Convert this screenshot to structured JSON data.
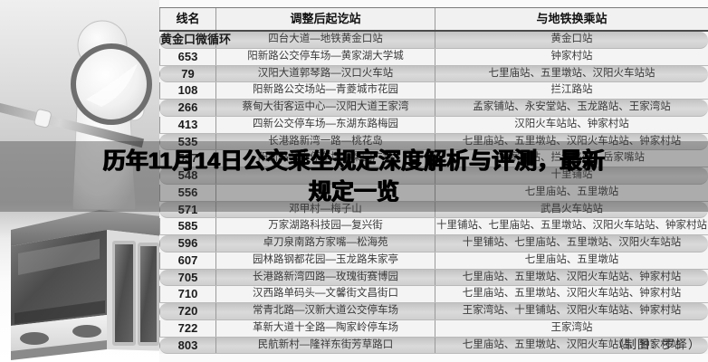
{
  "title": {
    "line1": "历年11月14日公交乘坐规定深度解析与评测，最新",
    "line2": "规定一览"
  },
  "credit": "（制图：罗怿）",
  "table": {
    "headers": [
      "线名",
      "调整后起讫站",
      "与地铁换乘站"
    ],
    "rows": [
      [
        "黄金口微循环",
        "四台大道—地铁黄金口站",
        "黄金口站"
      ],
      [
        "653",
        "阳新路公交停车场—黄家湖大学城",
        "钟家村站"
      ],
      [
        "79",
        "汉阳大道郭琴路—汉口火车站",
        "七里庙站、五里墩站、汉阳火车站站"
      ],
      [
        "108",
        "阳新路公交场站—青菱城市花园",
        "拦江路站"
      ],
      [
        "266",
        "蔡甸大街客运中心—汉阳大道王家湾",
        "孟家铺站、永安堂站、玉龙路站、王家湾站"
      ],
      [
        "413",
        "四新公交停车场—东湖东路梅园",
        "汉阳火车站站、钟家村站"
      ],
      [
        "535",
        "长港路新湾一路—桃花岛",
        "七里庙站、五里墩站、汉阳火车站站、钟家村站"
      ],
      [
        "537",
        "阳新路公交停车场—梨园广场",
        "钟家村站、拦江路站、岳家嘴站"
      ],
      [
        "548",
        "",
        "十里铺站"
      ],
      [
        "556",
        "",
        "七里庙站、五里墩站"
      ],
      [
        "571",
        "邓甲村—梅子山",
        "武昌火车站站"
      ],
      [
        "585",
        "万家湖路科技园—复兴街",
        "十里铺站、七里庙站、五里墩站、汉阳火车站站、钟家村站"
      ],
      [
        "596",
        "卓刀泉南路方家嘴—松海苑",
        "十里铺站、七里庙站、五里墩站、汉阳火车站站"
      ],
      [
        "607",
        "园林路钢都花园—玉龙路朱家亭",
        "七里庙站、五里墩站"
      ],
      [
        "705",
        "长港路新湾四路—玫瑰街赛博园",
        "七里庙站、五里墩站、汉阳火车站站、钟家村站"
      ],
      [
        "710",
        "汉西路单码头—文馨街文昌街口",
        "七里庙站、五里墩站、汉阳火车站站、钟家村站"
      ],
      [
        "720",
        "常青北路—汉新大道公交停车场",
        "王家湾站、十里铺站、汉阳火车站站、钟家村站"
      ],
      [
        "722",
        "革新大道十全路—陶家岭停车场",
        "王家湾站"
      ],
      [
        "803",
        "民航新村—隆祥东街芳草路口",
        "七里庙站、五里墩站、汉阳火车站站、钟家村站"
      ]
    ]
  },
  "art": {
    "left_top": "3d-figure-with-magnifying-glass",
    "left_bottom": "bus-front-corner-photo"
  },
  "colors": {
    "row_shade": "#cdcdcd",
    "overlay_veil": "rgba(55,55,55,0.38)",
    "headline_text": "#000000",
    "table_line": "#9a9a9a"
  }
}
